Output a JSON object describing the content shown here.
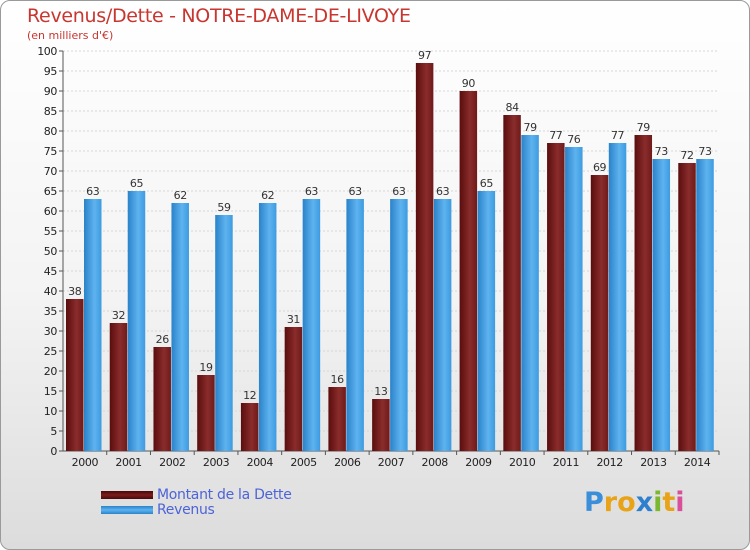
{
  "title": "Revenus/Dette - NOTRE-DAME-DE-LIVOYE",
  "subtitle": "(en milliers d'€)",
  "chart_data": {
    "type": "bar",
    "title": "Revenus/Dette - NOTRE-DAME-DE-LIVOYE",
    "ylabel": "(en milliers d'€)",
    "xlabel": "",
    "ylim": [
      0,
      100
    ],
    "ytick_step": 5,
    "categories": [
      "2000",
      "2001",
      "2002",
      "2003",
      "2004",
      "2005",
      "2006",
      "2007",
      "2008",
      "2009",
      "2010",
      "2011",
      "2012",
      "2013",
      "2014"
    ],
    "series": [
      {
        "name": "Montant de la Dette",
        "color": "#7a1c1c",
        "values": [
          38,
          32,
          26,
          19,
          12,
          31,
          16,
          13,
          97,
          90,
          84,
          77,
          69,
          79,
          72
        ]
      },
      {
        "name": "Revenus",
        "color": "#3d9be0",
        "values": [
          63,
          65,
          62,
          59,
          62,
          63,
          63,
          63,
          63,
          65,
          79,
          76,
          77,
          73,
          73
        ]
      }
    ],
    "legend_position": "bottom-left"
  },
  "legend": [
    {
      "label": "Montant de la Dette",
      "color": "#6b1515"
    },
    {
      "label": "Revenus",
      "color": "#3d9be0"
    }
  ],
  "logo": {
    "letters": [
      "P",
      "r",
      "o",
      "x",
      "i",
      "t",
      "i"
    ],
    "colors": [
      "#3a8fd8",
      "#e8a317",
      "#e8a317",
      "#2f7fcf",
      "#7cb82f",
      "#e8a317",
      "#d94f9a"
    ]
  }
}
